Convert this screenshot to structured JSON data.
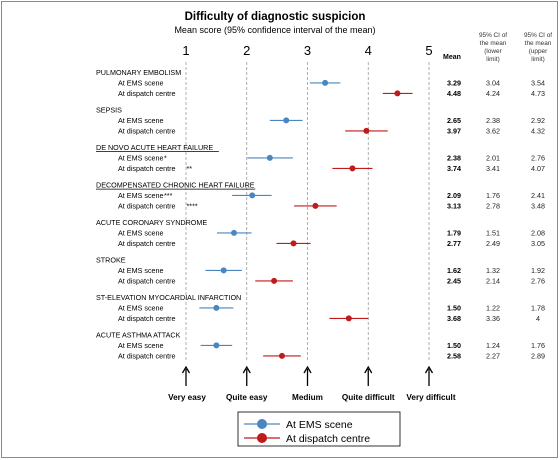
{
  "chart_data": {
    "type": "scatter",
    "title": "Difficulty of diagnostic suspicion",
    "subtitle": "Mean score (95% confidence interval of the mean)",
    "xlim": [
      1,
      5
    ],
    "x_ticks": [
      "1",
      "2",
      "3",
      "4",
      "5"
    ],
    "grid": "vertical dashed",
    "columns": {
      "mean": "Mean",
      "lower": "95% CI of the mean (lower limit)",
      "upper": "95% CI of the mean (upper limit)"
    },
    "scale_anchors": [
      "Very easy",
      "Quite easy",
      "Medium",
      "Quite difficult",
      "Very difficult"
    ],
    "series": [
      {
        "name": "At EMS scene",
        "color": "#4a86c0"
      },
      {
        "name": "At dispatch centre",
        "color": "#c01a1a"
      }
    ],
    "legend_position": "bottom-center",
    "groups": [
      {
        "category": "PULMONARY EMBOLISM",
        "underline": false,
        "rows": [
          {
            "label": "At EMS scene",
            "mark": "",
            "series": 0,
            "mean": 3.29,
            "lower": 3.04,
            "upper": 3.54,
            "mean_text": "3.29",
            "lower_text": "3.04",
            "upper_text": "3.54"
          },
          {
            "label": "At dispatch centre",
            "mark": "",
            "series": 1,
            "mean": 4.48,
            "lower": 4.24,
            "upper": 4.73,
            "mean_text": "4.48",
            "lower_text": "4.24",
            "upper_text": "4.73"
          }
        ]
      },
      {
        "category": "SEPSIS",
        "underline": false,
        "rows": [
          {
            "label": "At EMS scene",
            "mark": "",
            "series": 0,
            "mean": 2.65,
            "lower": 2.38,
            "upper": 2.92,
            "mean_text": "2.65",
            "lower_text": "2.38",
            "upper_text": "2.92"
          },
          {
            "label": "At dispatch centre",
            "mark": "",
            "series": 1,
            "mean": 3.97,
            "lower": 3.62,
            "upper": 4.32,
            "mean_text": "3.97",
            "lower_text": "3.62",
            "upper_text": "4.32"
          }
        ]
      },
      {
        "category": "DE NOVO ACUTE HEART FAILURE",
        "underline": true,
        "rows": [
          {
            "label": "At EMS scene",
            "mark": "*",
            "series": 0,
            "mean": 2.38,
            "lower": 2.01,
            "upper": 2.76,
            "mean_text": "2.38",
            "lower_text": "2.01",
            "upper_text": "2.76"
          },
          {
            "label": "At dispatch centre",
            "mark": "**",
            "series": 1,
            "mean": 3.74,
            "lower": 3.41,
            "upper": 4.07,
            "mean_text": "3.74",
            "lower_text": "3.41",
            "upper_text": "4.07"
          }
        ]
      },
      {
        "category": "DECOMPENSATED CHRONIC HEART FAILURE",
        "underline": true,
        "rows": [
          {
            "label": "At EMS scene",
            "mark": "***",
            "series": 0,
            "mean": 2.09,
            "lower": 1.76,
            "upper": 2.41,
            "mean_text": "2.09",
            "lower_text": "1.76",
            "upper_text": "2.41"
          },
          {
            "label": "At dispatch centre",
            "mark": "****",
            "series": 1,
            "mean": 3.13,
            "lower": 2.78,
            "upper": 3.48,
            "mean_text": "3.13",
            "lower_text": "2.78",
            "upper_text": "3.48"
          }
        ]
      },
      {
        "category": "ACUTE CORONARY SYNDROME",
        "underline": false,
        "rows": [
          {
            "label": "At EMS scene",
            "mark": "",
            "series": 0,
            "mean": 1.79,
            "lower": 1.51,
            "upper": 2.08,
            "mean_text": "1.79",
            "lower_text": "1.51",
            "upper_text": "2.08"
          },
          {
            "label": "At dispatch centre",
            "mark": "",
            "series": 1,
            "mean": 2.77,
            "lower": 2.49,
            "upper": 3.05,
            "mean_text": "2.77",
            "lower_text": "2.49",
            "upper_text": "3.05"
          }
        ]
      },
      {
        "category": "STROKE",
        "underline": false,
        "rows": [
          {
            "label": "At EMS scene",
            "mark": "",
            "series": 0,
            "mean": 1.62,
            "lower": 1.32,
            "upper": 1.92,
            "mean_text": "1.62",
            "lower_text": "1.32",
            "upper_text": "1.92"
          },
          {
            "label": "At dispatch centre",
            "mark": "",
            "series": 1,
            "mean": 2.45,
            "lower": 2.14,
            "upper": 2.76,
            "mean_text": "2.45",
            "lower_text": "2.14",
            "upper_text": "2.76"
          }
        ]
      },
      {
        "category": "ST-ELEVATION MYOCARDIAL INFARCTION",
        "underline": false,
        "rows": [
          {
            "label": "At EMS scene",
            "mark": "",
            "series": 0,
            "mean": 1.5,
            "lower": 1.22,
            "upper": 1.78,
            "mean_text": "1.50",
            "lower_text": "1.22",
            "upper_text": "1.78"
          },
          {
            "label": "At dispatch centre",
            "mark": "",
            "series": 1,
            "mean": 3.68,
            "lower": 3.36,
            "upper": 4.0,
            "mean_text": "3.68",
            "lower_text": "3.36",
            "upper_text": "4"
          }
        ]
      },
      {
        "category": "ACUTE ASTHMA ATTACK",
        "underline": false,
        "rows": [
          {
            "label": "At EMS scene",
            "mark": "",
            "series": 0,
            "mean": 1.5,
            "lower": 1.24,
            "upper": 1.76,
            "mean_text": "1.50",
            "lower_text": "1.24",
            "upper_text": "1.76"
          },
          {
            "label": "At dispatch centre",
            "mark": "",
            "series": 1,
            "mean": 2.58,
            "lower": 2.27,
            "upper": 2.89,
            "mean_text": "2.58",
            "lower_text": "2.27",
            "upper_text": "2.89"
          }
        ]
      }
    ]
  }
}
